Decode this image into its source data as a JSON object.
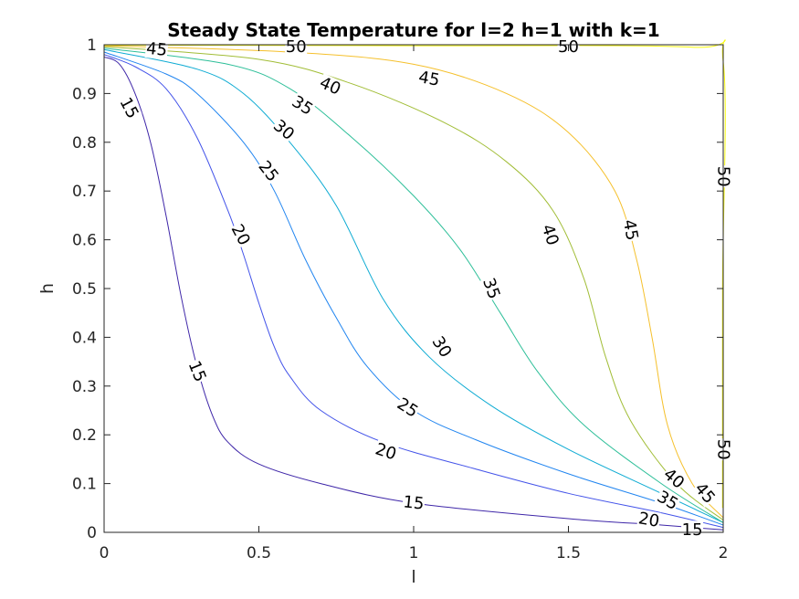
{
  "chart_data": {
    "type": "contour",
    "title": "Steady State Temperature for l=2 h=1 with k=1",
    "xlabel": "l",
    "ylabel": "h",
    "xlim": [
      0,
      2
    ],
    "ylim": [
      0,
      1
    ],
    "xticks": [
      0,
      0.5,
      1,
      1.5,
      2
    ],
    "xtick_labels": [
      "0",
      "0.5",
      "1",
      "1.5",
      "2"
    ],
    "yticks": [
      0,
      0.1,
      0.2,
      0.3,
      0.4,
      0.5,
      0.6,
      0.7,
      0.8,
      0.9,
      1
    ],
    "ytick_labels": [
      "0",
      "0.1",
      "0.2",
      "0.3",
      "0.4",
      "0.5",
      "0.6",
      "0.7",
      "0.8",
      "0.9",
      "1"
    ],
    "grid": false,
    "series": [
      {
        "name": "15",
        "color": "#3e26a8",
        "points": [
          [
            0,
            0.975
          ],
          [
            0.05,
            0.96
          ],
          [
            0.1,
            0.9
          ],
          [
            0.15,
            0.8
          ],
          [
            0.2,
            0.65
          ],
          [
            0.25,
            0.48
          ],
          [
            0.3,
            0.34
          ],
          [
            0.35,
            0.24
          ],
          [
            0.4,
            0.185
          ],
          [
            0.5,
            0.14
          ],
          [
            0.7,
            0.1
          ],
          [
            1.0,
            0.06
          ],
          [
            1.5,
            0.028
          ],
          [
            1.8,
            0.015
          ],
          [
            2.0,
            0.005
          ]
        ]
      },
      {
        "name": "20",
        "color": "#4353e9",
        "points": [
          [
            0,
            0.98
          ],
          [
            0.1,
            0.955
          ],
          [
            0.2,
            0.91
          ],
          [
            0.3,
            0.81
          ],
          [
            0.4,
            0.66
          ],
          [
            0.45,
            0.57
          ],
          [
            0.5,
            0.47
          ],
          [
            0.55,
            0.38
          ],
          [
            0.6,
            0.32
          ],
          [
            0.7,
            0.25
          ],
          [
            0.9,
            0.185
          ],
          [
            1.2,
            0.13
          ],
          [
            1.5,
            0.08
          ],
          [
            1.8,
            0.04
          ],
          [
            2.0,
            0.01
          ]
        ]
      },
      {
        "name": "25",
        "color": "#2185f0",
        "points": [
          [
            0,
            0.985
          ],
          [
            0.2,
            0.94
          ],
          [
            0.3,
            0.9
          ],
          [
            0.45,
            0.8
          ],
          [
            0.55,
            0.7
          ],
          [
            0.65,
            0.56
          ],
          [
            0.75,
            0.44
          ],
          [
            0.85,
            0.34
          ],
          [
            1.0,
            0.25
          ],
          [
            1.2,
            0.19
          ],
          [
            1.5,
            0.12
          ],
          [
            1.8,
            0.06
          ],
          [
            2.0,
            0.015
          ]
        ]
      },
      {
        "name": "30",
        "color": "#0eabd3",
        "points": [
          [
            0,
            0.99
          ],
          [
            0.3,
            0.95
          ],
          [
            0.45,
            0.9
          ],
          [
            0.6,
            0.8
          ],
          [
            0.75,
            0.67
          ],
          [
            0.9,
            0.48
          ],
          [
            1.05,
            0.36
          ],
          [
            1.25,
            0.26
          ],
          [
            1.5,
            0.17
          ],
          [
            1.8,
            0.08
          ],
          [
            2.0,
            0.02
          ]
        ]
      },
      {
        "name": "35",
        "color": "#2ebf99",
        "points": [
          [
            0,
            0.993
          ],
          [
            0.4,
            0.96
          ],
          [
            0.6,
            0.91
          ],
          [
            0.8,
            0.81
          ],
          [
            1.0,
            0.69
          ],
          [
            1.15,
            0.58
          ],
          [
            1.28,
            0.45
          ],
          [
            1.4,
            0.33
          ],
          [
            1.55,
            0.22
          ],
          [
            1.8,
            0.1
          ],
          [
            2.0,
            0.02
          ]
        ]
      },
      {
        "name": "40",
        "color": "#a1bd36",
        "points": [
          [
            0,
            0.996
          ],
          [
            0.5,
            0.97
          ],
          [
            0.8,
            0.92
          ],
          [
            1.1,
            0.84
          ],
          [
            1.3,
            0.76
          ],
          [
            1.45,
            0.66
          ],
          [
            1.55,
            0.52
          ],
          [
            1.62,
            0.36
          ],
          [
            1.7,
            0.23
          ],
          [
            1.85,
            0.1
          ],
          [
            2.0,
            0.025
          ]
        ]
      },
      {
        "name": "45",
        "color": "#f5c02c",
        "points": [
          [
            0,
            0.998
          ],
          [
            0.6,
            0.985
          ],
          [
            1.0,
            0.96
          ],
          [
            1.3,
            0.9
          ],
          [
            1.5,
            0.82
          ],
          [
            1.65,
            0.7
          ],
          [
            1.72,
            0.56
          ],
          [
            1.77,
            0.4
          ],
          [
            1.82,
            0.22
          ],
          [
            1.9,
            0.1
          ],
          [
            2.0,
            0.03
          ]
        ]
      },
      {
        "name": "50",
        "color": "#f9fb0e",
        "points": [
          [
            0,
            0.999
          ],
          [
            1.0,
            0.998
          ],
          [
            1.9,
            0.995
          ],
          [
            2.0,
            0.965
          ],
          [
            1.998,
            0.5
          ],
          [
            1.998,
            0.05
          ]
        ]
      }
    ],
    "labels": [
      {
        "text": "15",
        "x": 0.08,
        "y": 0.87,
        "rotate": 62
      },
      {
        "text": "15",
        "x": 0.3,
        "y": 0.33,
        "rotate": 68
      },
      {
        "text": "15",
        "x": 1.0,
        "y": 0.06,
        "rotate": 6
      },
      {
        "text": "15",
        "x": 1.9,
        "y": 0.005,
        "rotate": 0
      },
      {
        "text": "20",
        "x": 0.44,
        "y": 0.61,
        "rotate": 62
      },
      {
        "text": "20",
        "x": 0.91,
        "y": 0.165,
        "rotate": 18
      },
      {
        "text": "20",
        "x": 1.76,
        "y": 0.025,
        "rotate": 10
      },
      {
        "text": "25",
        "x": 0.53,
        "y": 0.74,
        "rotate": 52
      },
      {
        "text": "25",
        "x": 0.98,
        "y": 0.255,
        "rotate": 32
      },
      {
        "text": "30",
        "x": 0.58,
        "y": 0.825,
        "rotate": 40
      },
      {
        "text": "30",
        "x": 1.09,
        "y": 0.38,
        "rotate": 58
      },
      {
        "text": "35",
        "x": 0.64,
        "y": 0.875,
        "rotate": 32
      },
      {
        "text": "35",
        "x": 1.25,
        "y": 0.5,
        "rotate": 70
      },
      {
        "text": "35",
        "x": 1.82,
        "y": 0.065,
        "rotate": 30
      },
      {
        "text": "40",
        "x": 0.73,
        "y": 0.915,
        "rotate": 24
      },
      {
        "text": "40",
        "x": 1.44,
        "y": 0.61,
        "rotate": 72
      },
      {
        "text": "40",
        "x": 1.84,
        "y": 0.11,
        "rotate": 40
      },
      {
        "text": "45",
        "x": 0.17,
        "y": 0.99,
        "rotate": 6
      },
      {
        "text": "45",
        "x": 1.05,
        "y": 0.93,
        "rotate": 10
      },
      {
        "text": "45",
        "x": 1.7,
        "y": 0.62,
        "rotate": 80
      },
      {
        "text": "45",
        "x": 1.94,
        "y": 0.08,
        "rotate": 50
      },
      {
        "text": "50",
        "x": 0.62,
        "y": 0.995,
        "rotate": 0
      },
      {
        "text": "50",
        "x": 1.5,
        "y": 0.995,
        "rotate": 0
      },
      {
        "text": "50",
        "x": 2.0,
        "y": 0.73,
        "rotate": 90
      },
      {
        "text": "50",
        "x": 2.0,
        "y": 0.17,
        "rotate": 90
      }
    ]
  }
}
